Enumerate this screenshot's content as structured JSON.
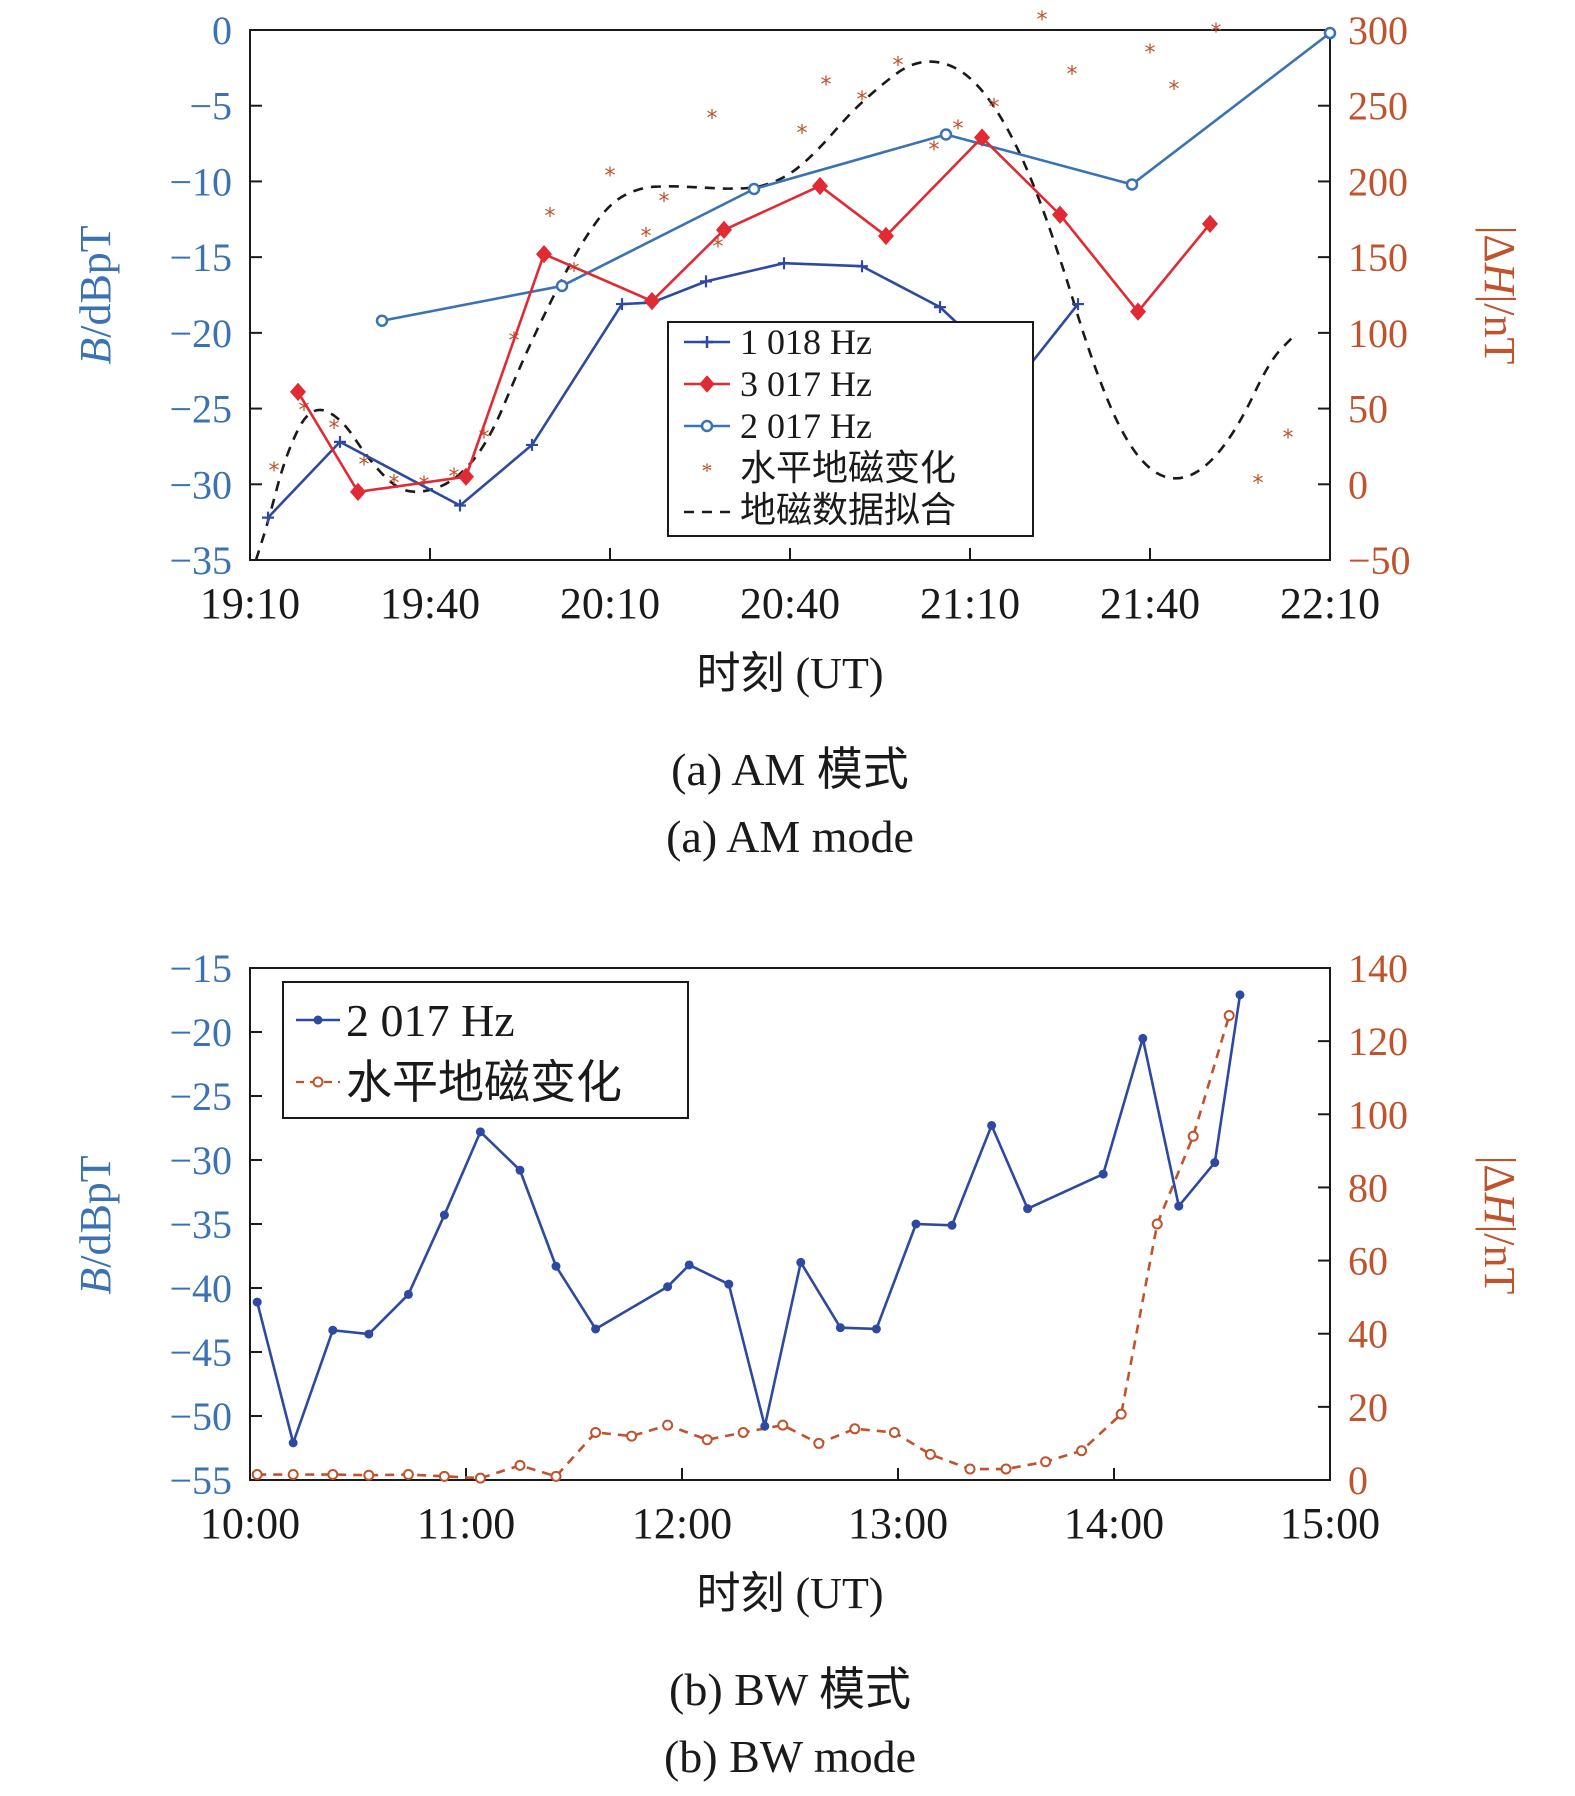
{
  "colors": {
    "left_axis": "#3a72b3",
    "right_axis": "#c0532b",
    "series_1018": "#2e4aa0",
    "series_3017": "#e02a34",
    "series_2017": "#3a72b3",
    "geomag_points": "#c0532b",
    "fit": "#1a1a1a",
    "bw_2017": "#2e4aa0",
    "bw_geomag": "#c0532b"
  },
  "chart_data": [
    {
      "type": "line",
      "caption_cn": "(a) AM 模式",
      "caption_en": "(a) AM mode",
      "xlabel": "时刻 (UT)",
      "ylabel_left_prefix": "B",
      "ylabel_left_suffix": "/dBpT",
      "ylabel_right_prefix": "|Δ",
      "ylabel_right_italic": "H",
      "ylabel_right_suffix": "|/nT",
      "x_ticks": [
        "19:10",
        "19:40",
        "20:10",
        "20:40",
        "21:10",
        "21:40",
        "22:10"
      ],
      "x_range_min": [
        1150,
        1330
      ],
      "ylim_left": [
        -35,
        0
      ],
      "yticks_left": [
        "0",
        "−5",
        "−10",
        "−15",
        "−20",
        "−25",
        "−30",
        "−35"
      ],
      "ylim_right": [
        -50,
        300
      ],
      "yticks_right": [
        "300",
        "250",
        "200",
        "150",
        "100",
        "50",
        "0",
        "−50"
      ],
      "grid": false,
      "legend_position": "center",
      "legend": {
        "s1018": "1 018 Hz",
        "s3017": "3 017 Hz",
        "s2017": "2 017 Hz",
        "geomag": "水平地磁变化",
        "fit": "地磁数据拟合"
      },
      "series": [
        {
          "name": "1 018 Hz",
          "axis": "left",
          "marker": "plus",
          "x": [
            1153,
            1165,
            1185,
            1197,
            1212,
            1217,
            1226,
            1239,
            1252,
            1265,
            1278,
            1288,
            1306,
            1320
          ],
          "y": [
            -32.2,
            -27.2,
            -31.4,
            -27.4,
            -18.1,
            -18.0,
            -16.6,
            -15.4,
            -15.6,
            -18.3,
            -23.1,
            -18.1,
            null,
            null
          ]
        },
        {
          "name": "3 017 Hz",
          "axis": "left",
          "marker": "diamond",
          "x": [
            1158,
            1168,
            1186,
            1199,
            1217,
            1229,
            1245,
            1256,
            1272,
            1285,
            1298,
            1310
          ],
          "y": [
            -23.9,
            -30.5,
            -29.5,
            -14.8,
            -17.9,
            -13.2,
            -10.3,
            -13.6,
            -7.1,
            -12.2,
            -18.6,
            -12.8
          ]
        },
        {
          "name": "2 017 Hz",
          "axis": "left",
          "marker": "circle",
          "x": [
            1172,
            1202,
            1234,
            1266,
            1297,
            1330
          ],
          "y": [
            -19.2,
            -16.9,
            -10.5,
            -6.9,
            -10.2,
            -0.2
          ]
        },
        {
          "name": "水平地磁变化",
          "axis": "right",
          "marker": "star",
          "x": [
            1154,
            1159,
            1164,
            1169,
            1174,
            1179,
            1184,
            1189,
            1194,
            1200,
            1204,
            1210,
            1216,
            1219,
            1227,
            1228,
            1242,
            1246,
            1252,
            1258,
            1264,
            1268,
            1274,
            1282,
            1287,
            1300,
            1304,
            1311,
            1318,
            1323
          ],
          "y": [
            10,
            50,
            38,
            14,
            2,
            1,
            6,
            32,
            96,
            178,
            142,
            205,
            165,
            188,
            243,
            158,
            233,
            265,
            255,
            278,
            222,
            236,
            250,
            308,
            272,
            286,
            262,
            300,
            2,
            32
          ]
        }
      ],
      "fit_points": [
        [
          1151,
          -50
        ],
        [
          1153,
          -25
        ],
        [
          1156,
          20
        ],
        [
          1160,
          52
        ],
        [
          1165,
          45
        ],
        [
          1170,
          15
        ],
        [
          1175,
          -5
        ],
        [
          1180,
          -5
        ],
        [
          1185,
          5
        ],
        [
          1190,
          30
        ],
        [
          1195,
          78
        ],
        [
          1200,
          120
        ],
        [
          1205,
          158
        ],
        [
          1210,
          186
        ],
        [
          1215,
          196
        ],
        [
          1220,
          197
        ],
        [
          1225,
          196
        ],
        [
          1230,
          195
        ],
        [
          1235,
          196
        ],
        [
          1240,
          204
        ],
        [
          1245,
          222
        ],
        [
          1250,
          245
        ],
        [
          1255,
          263
        ],
        [
          1260,
          278
        ],
        [
          1265,
          280
        ],
        [
          1270,
          270
        ],
        [
          1275,
          245
        ],
        [
          1280,
          205
        ],
        [
          1285,
          150
        ],
        [
          1290,
          85
        ],
        [
          1295,
          35
        ],
        [
          1300,
          8
        ],
        [
          1305,
          2
        ],
        [
          1310,
          13
        ],
        [
          1315,
          40
        ],
        [
          1320,
          82
        ],
        [
          1324,
          98
        ]
      ]
    },
    {
      "type": "line",
      "caption_cn": "(b) BW 模式",
      "caption_en": "(b) BW mode",
      "xlabel": "时刻 (UT)",
      "ylabel_left_prefix": "B",
      "ylabel_left_suffix": "/dBpT",
      "ylabel_right_prefix": "|Δ",
      "ylabel_right_italic": "H",
      "ylabel_right_suffix": "|/nT",
      "x_ticks": [
        "10:00",
        "11:00",
        "12:00",
        "13:00",
        "14:00",
        "15:00"
      ],
      "ylim_left": [
        -55,
        -15
      ],
      "yticks_left": [
        "−15",
        "−20",
        "−25",
        "−30",
        "−35",
        "−40",
        "−45",
        "−50",
        "−55"
      ],
      "ylim_right": [
        0,
        140
      ],
      "yticks_right": [
        "140",
        "120",
        "100",
        "80",
        "60",
        "40",
        "20",
        "0"
      ],
      "grid": false,
      "legend_position": "top-left",
      "legend": {
        "s2017": "2 017 Hz",
        "geomag": "水平地磁变化"
      },
      "series": [
        {
          "name": "2 017 Hz",
          "axis": "left",
          "marker": "dot",
          "x": [
            602,
            612,
            623,
            633,
            644,
            654,
            664,
            675,
            685,
            696,
            716,
            722,
            733,
            743,
            753,
            764,
            774,
            785,
            795,
            806,
            816,
            837,
            848,
            858,
            868,
            875,
            880,
            885,
            890,
            897
          ],
          "y": [
            -41.1,
            -52.1,
            -43.3,
            -43.6,
            -40.5,
            -34.3,
            -27.8,
            -30.8,
            -38.3,
            -43.2,
            -39.9,
            -38.2,
            -39.7,
            -50.8,
            -38.0,
            -43.1,
            -43.2,
            -35.0,
            -35.1,
            -27.3,
            -33.8,
            -31.1,
            -20.5,
            -33.6,
            -30.2,
            -17.1,
            null,
            null,
            null,
            null
          ]
        },
        {
          "name": "水平地磁变化",
          "axis": "right",
          "marker": "open-circle",
          "x": [
            602,
            612,
            623,
            633,
            644,
            654,
            664,
            675,
            685,
            696,
            706,
            716,
            727,
            737,
            748,
            758,
            768,
            779,
            789,
            800,
            810,
            821,
            831,
            842,
            852,
            862,
            872,
            883,
            893,
            900
          ],
          "y": [
            1.5,
            1.5,
            1.5,
            1.3,
            1.5,
            1,
            0.5,
            4,
            1,
            13,
            12,
            15,
            11,
            13,
            15,
            10,
            14,
            13,
            7,
            3,
            3,
            5,
            8,
            18,
            70,
            94,
            127,
            null,
            null,
            null
          ]
        }
      ]
    }
  ]
}
